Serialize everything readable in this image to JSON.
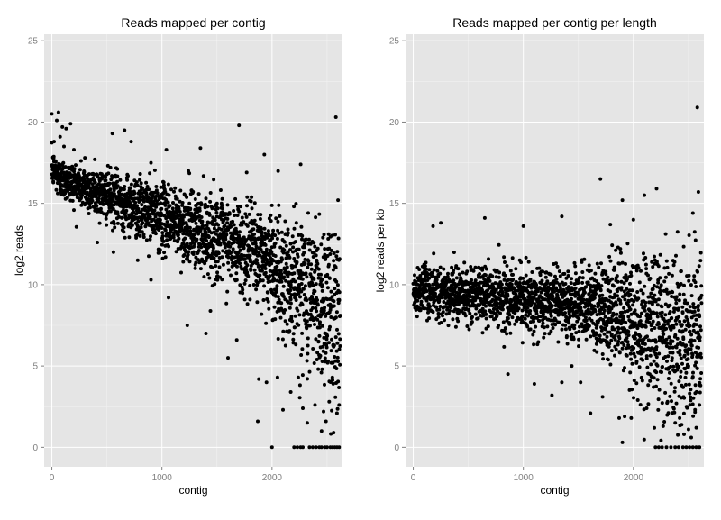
{
  "chart_data": [
    {
      "type": "scatter",
      "title": "Reads mapped per contig",
      "xlabel": "contig",
      "ylabel": "log2 reads",
      "xlim": [
        -70,
        2640
      ],
      "ylim": [
        -1.2,
        25.4
      ],
      "x_ticks": [
        0,
        1000,
        2000
      ],
      "y_ticks": [
        0,
        5,
        10,
        15,
        20,
        25
      ],
      "grid": true,
      "series": [
        {
          "points": [
            [
              0,
              20.5
            ],
            [
              20,
              18.8
            ],
            [
              35,
              17.6
            ],
            [
              45,
              20.1
            ],
            [
              60,
              20.6
            ],
            [
              75,
              19.1
            ],
            [
              95,
              19.7
            ],
            [
              110,
              18.5
            ],
            [
              130,
              19.6
            ],
            [
              170,
              19.9
            ],
            [
              200,
              18.3
            ],
            [
              300,
              17.8
            ],
            [
              390,
              17.7
            ],
            [
              550,
              19.3
            ],
            [
              660,
              19.5
            ],
            [
              720,
              18.8
            ],
            [
              900,
              17.5
            ],
            [
              1040,
              18.3
            ],
            [
              1240,
              17.0
            ],
            [
              1350,
              18.4
            ],
            [
              1700,
              19.8
            ],
            [
              1770,
              16.9
            ],
            [
              1930,
              18.0
            ],
            [
              2120,
              13.1
            ],
            [
              2260,
              17.4
            ],
            [
              2580,
              20.3
            ],
            [
              2600,
              15.2
            ],
            [
              1400,
              15.3
            ],
            [
              1500,
              15.0
            ],
            [
              1600,
              14.3
            ],
            [
              1700,
              14.5
            ],
            [
              1800,
              13.8
            ],
            [
              1900,
              13.5
            ],
            [
              2000,
              13.0
            ],
            [
              2100,
              12.2
            ],
            [
              2200,
              11.6
            ],
            [
              2300,
              11.3
            ],
            [
              2400,
              11.8
            ],
            [
              2500,
              10.5
            ],
            [
              560,
              12.0
            ],
            [
              780,
              11.5
            ],
            [
              900,
              10.3
            ],
            [
              1060,
              9.2
            ],
            [
              1230,
              7.5
            ],
            [
              1400,
              7.0
            ],
            [
              1600,
              5.5
            ],
            [
              1680,
              6.6
            ],
            [
              1870,
              1.6
            ],
            [
              1880,
              4.2
            ],
            [
              1950,
              4.0
            ],
            [
              2050,
              4.3
            ],
            [
              2100,
              2.3
            ],
            [
              2170,
              3.4
            ],
            [
              2280,
              2.4
            ],
            [
              2320,
              1.5
            ],
            [
              2390,
              2.6
            ],
            [
              2450,
              1.0
            ],
            [
              2490,
              1.6
            ],
            [
              2520,
              2.8
            ],
            [
              2560,
              0.9
            ],
            [
              2590,
              2.1
            ],
            [
              2610,
              2.6
            ],
            [
              2000,
              0
            ],
            [
              2200,
              0
            ],
            [
              2230,
              0
            ],
            [
              2260,
              0
            ],
            [
              2280,
              0
            ],
            [
              2340,
              0
            ],
            [
              2370,
              0
            ],
            [
              2400,
              0
            ],
            [
              2430,
              0
            ],
            [
              2450,
              0
            ],
            [
              2480,
              0
            ],
            [
              2500,
              0
            ],
            [
              2530,
              0
            ],
            [
              2550,
              0
            ],
            [
              2570,
              0
            ],
            [
              2590,
              0
            ],
            [
              2610,
              0
            ]
          ]
        }
      ]
    },
    {
      "type": "scatter",
      "title": "Reads mapped per contig per length",
      "xlabel": "contig",
      "ylabel": "log2 reads per kb",
      "xlim": [
        -70,
        2640
      ],
      "ylim": [
        -1.2,
        25.4
      ],
      "x_ticks": [
        0,
        1000,
        2000
      ],
      "y_ticks": [
        0,
        5,
        10,
        15,
        20,
        25
      ],
      "grid": true,
      "series": [
        {
          "points": [
            [
              2580,
              20.9
            ],
            [
              2590,
              15.7
            ],
            [
              1700,
              16.5
            ],
            [
              1900,
              15.2
            ],
            [
              2000,
              14.0
            ],
            [
              2100,
              15.5
            ],
            [
              2210,
              15.9
            ],
            [
              2540,
              14.4
            ],
            [
              1350,
              14.2
            ],
            [
              180,
              13.6
            ],
            [
              250,
              13.8
            ],
            [
              650,
              14.1
            ],
            [
              1000,
              13.6
            ],
            [
              1790,
              13.7
            ],
            [
              860,
              4.5
            ],
            [
              1100,
              3.9
            ],
            [
              1260,
              3.2
            ],
            [
              1350,
              4.0
            ],
            [
              1440,
              5.0
            ],
            [
              1520,
              4.0
            ],
            [
              1610,
              2.1
            ],
            [
              1720,
              3.1
            ],
            [
              1870,
              1.8
            ],
            [
              1900,
              0.3
            ],
            [
              1920,
              1.9
            ],
            [
              1980,
              1.8
            ],
            [
              2040,
              2.9
            ],
            [
              2120,
              2.4
            ],
            [
              2190,
              1.2
            ],
            [
              2270,
              1.3
            ],
            [
              2310,
              2.8
            ],
            [
              2390,
              2.7
            ],
            [
              2420,
              1.8
            ],
            [
              2460,
              0.8
            ],
            [
              2500,
              1.1
            ],
            [
              2560,
              2.3
            ],
            [
              2600,
              2.6
            ],
            [
              2610,
              3.8
            ],
            [
              2200,
              0
            ],
            [
              2230,
              0
            ],
            [
              2260,
              0
            ],
            [
              2300,
              0
            ],
            [
              2340,
              0
            ],
            [
              2380,
              0
            ],
            [
              2410,
              0
            ],
            [
              2450,
              0
            ],
            [
              2480,
              0
            ],
            [
              2510,
              0
            ],
            [
              2540,
              0
            ],
            [
              2570,
              0
            ],
            [
              2600,
              0
            ]
          ]
        }
      ]
    }
  ]
}
